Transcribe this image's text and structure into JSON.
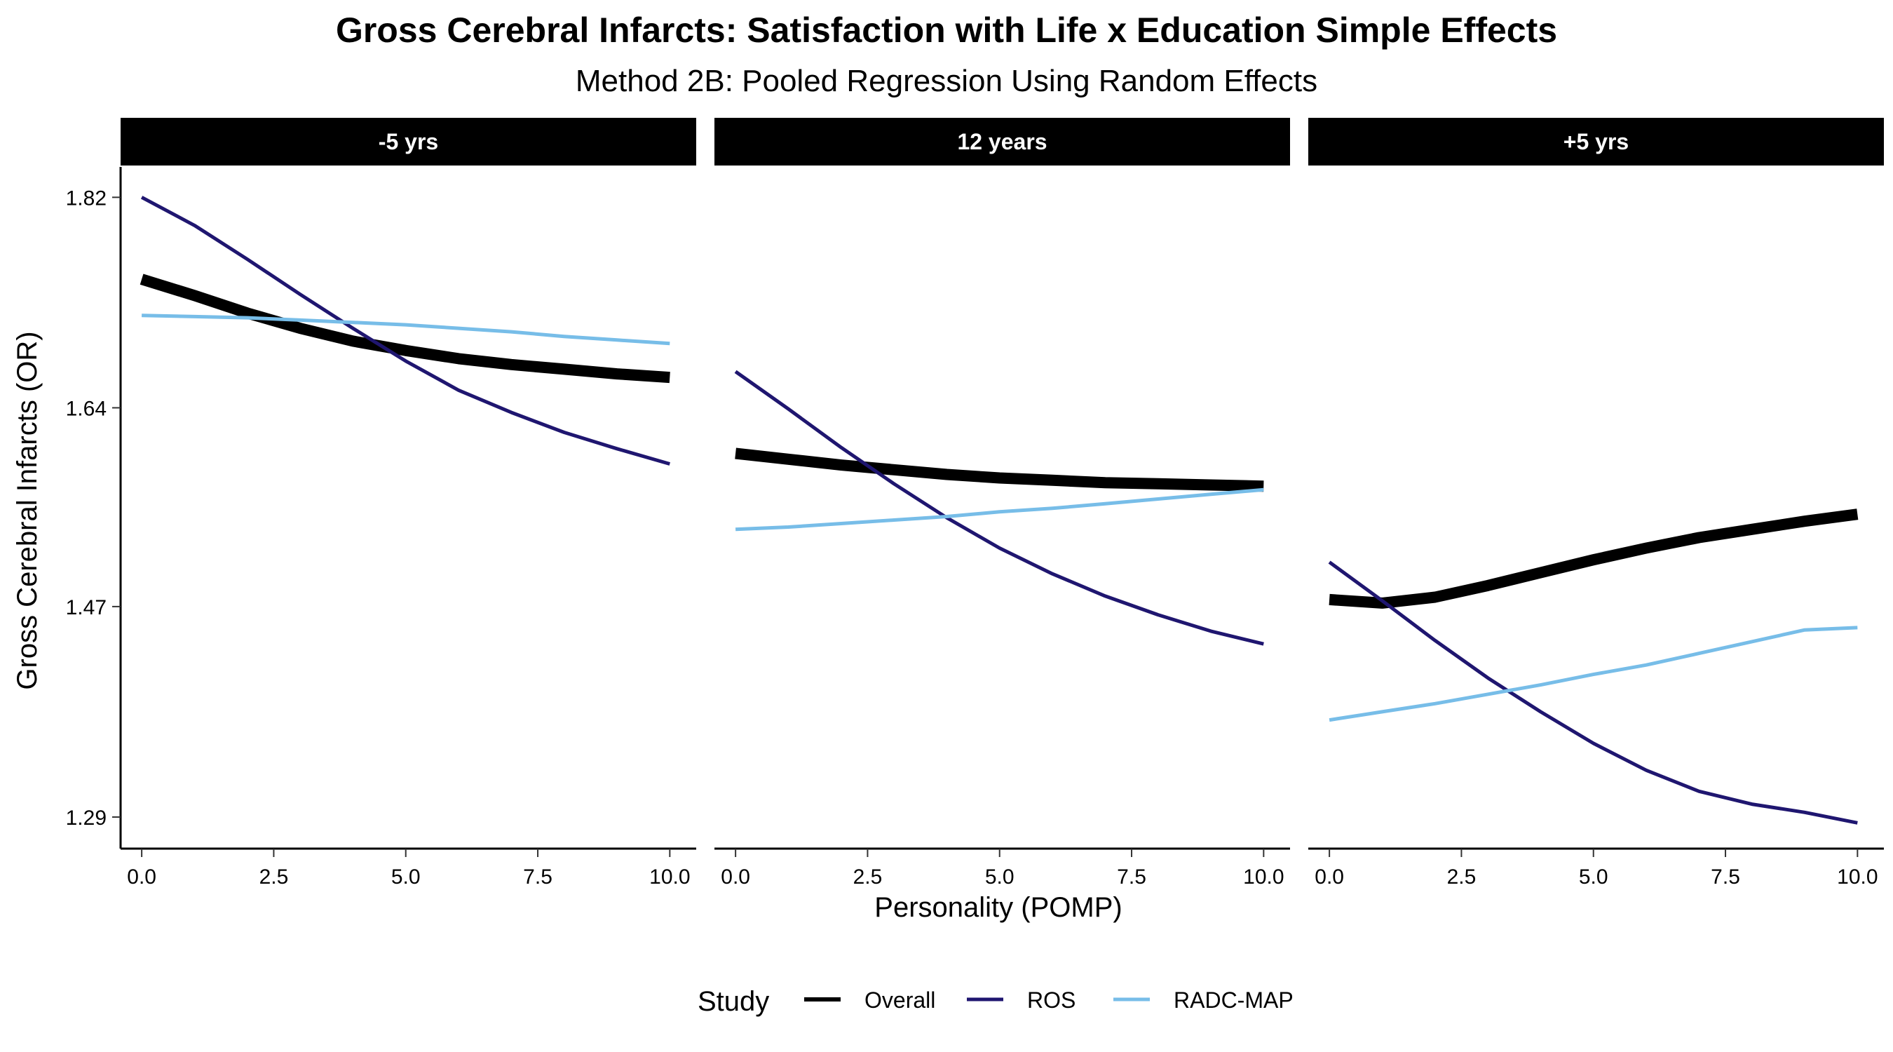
{
  "title": "Gross Cerebral Infarcts: Satisfaction with Life x Education Simple Effects",
  "subtitle": "Method 2B: Pooled Regression Using Random Effects",
  "chart_data": {
    "type": "line",
    "xlabel": "Personality (POMP)",
    "ylabel": "Gross Cerebral Infarcts (OR)",
    "xlim": [
      -0.4,
      10.5
    ],
    "ylim": [
      1.263,
      1.846
    ],
    "x_ticks": [
      0,
      2.5,
      5,
      7.5,
      10
    ],
    "x_tick_labels": [
      "0.0",
      "2.5",
      "5.0",
      "7.5",
      "10.0"
    ],
    "y_ticks": [
      1.29,
      1.47,
      1.64,
      1.82
    ],
    "y_tick_labels": [
      "1.29",
      "1.47",
      "1.64",
      "1.82"
    ],
    "grid": false,
    "legend": {
      "title": "Study",
      "position": "bottom",
      "entries": [
        {
          "label": "Overall",
          "color": "#000000"
        },
        {
          "label": "ROS",
          "color": "#1f1670"
        },
        {
          "label": "RADC-MAP",
          "color": "#77bde8"
        }
      ]
    },
    "panels": [
      {
        "label": "-5 yrs",
        "series": [
          {
            "name": "Overall",
            "color": "#000000",
            "x": [
              0,
              1,
              2,
              3,
              4,
              5,
              6,
              7,
              8,
              9,
              10
            ],
            "y": [
              1.75,
              1.736,
              1.721,
              1.708,
              1.697,
              1.689,
              1.682,
              1.677,
              1.673,
              1.669,
              1.666
            ]
          },
          {
            "name": "ROS",
            "color": "#1f1670",
            "x": [
              0,
              1,
              2,
              3,
              4,
              5,
              6,
              7,
              8,
              9,
              10
            ],
            "y": [
              1.82,
              1.796,
              1.767,
              1.737,
              1.708,
              1.68,
              1.655,
              1.636,
              1.619,
              1.605,
              1.592
            ]
          },
          {
            "name": "RADC-MAP",
            "color": "#77bde8",
            "x": [
              0,
              1,
              2,
              3,
              4,
              5,
              6,
              7,
              8,
              9,
              10
            ],
            "y": [
              1.719,
              1.718,
              1.717,
              1.715,
              1.713,
              1.711,
              1.708,
              1.705,
              1.701,
              1.698,
              1.695
            ]
          }
        ]
      },
      {
        "label": "12 years",
        "series": [
          {
            "name": "Overall",
            "color": "#000000",
            "x": [
              0,
              1,
              2,
              3,
              4,
              5,
              6,
              7,
              8,
              9,
              10
            ],
            "y": [
              1.601,
              1.596,
              1.591,
              1.587,
              1.583,
              1.58,
              1.578,
              1.576,
              1.575,
              1.574,
              1.573
            ]
          },
          {
            "name": "ROS",
            "color": "#1f1670",
            "x": [
              0,
              1,
              2,
              3,
              4,
              5,
              6,
              7,
              8,
              9,
              10
            ],
            "y": [
              1.671,
              1.639,
              1.606,
              1.575,
              1.546,
              1.52,
              1.498,
              1.479,
              1.463,
              1.449,
              1.438
            ]
          },
          {
            "name": "RADC-MAP",
            "color": "#77bde8",
            "x": [
              0,
              1,
              2,
              3,
              4,
              5,
              6,
              7,
              8,
              9,
              10
            ],
            "y": [
              1.536,
              1.538,
              1.541,
              1.544,
              1.547,
              1.551,
              1.554,
              1.558,
              1.562,
              1.566,
              1.57
            ]
          }
        ]
      },
      {
        "label": "+5 yrs",
        "series": [
          {
            "name": "Overall",
            "color": "#000000",
            "x": [
              0,
              1,
              2,
              3,
              4,
              5,
              6,
              7,
              8,
              9,
              10
            ],
            "y": [
              1.476,
              1.473,
              1.478,
              1.488,
              1.499,
              1.51,
              1.52,
              1.529,
              1.536,
              1.543,
              1.549
            ]
          },
          {
            "name": "ROS",
            "color": "#1f1670",
            "x": [
              0,
              1,
              2,
              3,
              4,
              5,
              6,
              7,
              8,
              9,
              10
            ],
            "y": [
              1.508,
              1.475,
              1.441,
              1.409,
              1.38,
              1.353,
              1.33,
              1.312,
              1.301,
              1.294,
              1.285
            ]
          },
          {
            "name": "RADC-MAP",
            "color": "#77bde8",
            "x": [
              0,
              1,
              2,
              3,
              4,
              5,
              6,
              7,
              8,
              9,
              10
            ],
            "y": [
              1.373,
              1.38,
              1.387,
              1.395,
              1.403,
              1.412,
              1.42,
              1.43,
              1.44,
              1.45,
              1.452
            ]
          }
        ]
      }
    ]
  }
}
